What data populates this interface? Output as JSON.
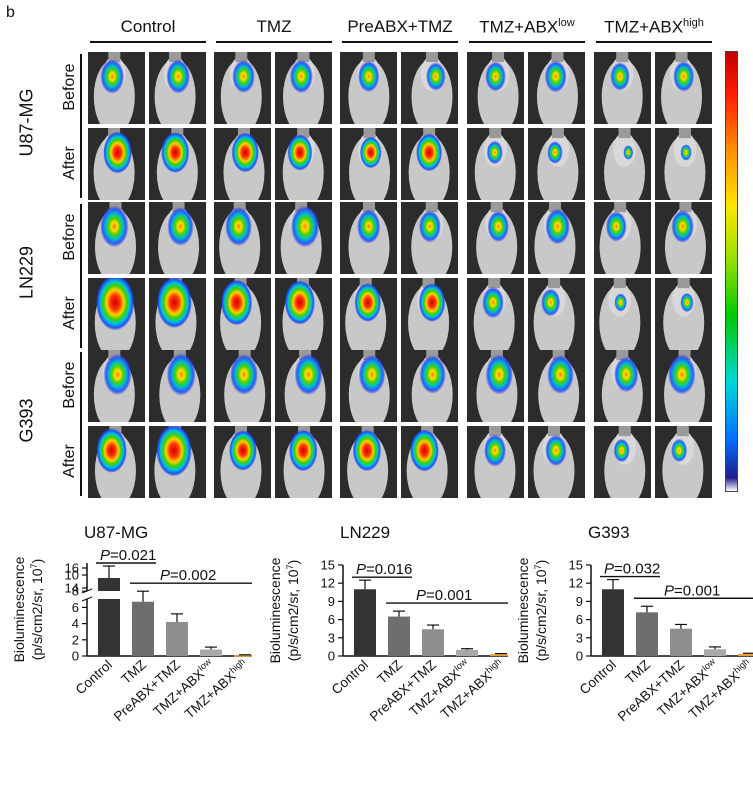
{
  "panel_letter": "b",
  "groups": [
    {
      "label": "Control",
      "sup": ""
    },
    {
      "label": "TMZ",
      "sup": ""
    },
    {
      "label": "PreABX+TMZ",
      "sup": ""
    },
    {
      "label": "TMZ+ABX",
      "sup": "low"
    },
    {
      "label": "TMZ+ABX",
      "sup": "high"
    }
  ],
  "cell_lines": [
    "U87-MG",
    "LN229",
    "G393"
  ],
  "timepoints": [
    "Before",
    "After"
  ],
  "colors": {
    "control": "#333333",
    "tmz": "#6e6e6e",
    "preabx": "#8e8e8e",
    "abx_low": "#a8a8a8",
    "abx_high": "#e8a030"
  },
  "chart_data": [
    {
      "type": "bar",
      "title": "U87-MG",
      "ylabel": [
        "Bioluminescence",
        "(p/s/cm2/sr, 10",
        "7",
        ")"
      ],
      "categories": [
        "Control",
        "TMZ",
        "PreABX+TMZ",
        "TMZ+ABX",
        "TMZ+ABX"
      ],
      "category_sup": [
        "",
        "",
        "",
        "low",
        "high"
      ],
      "values": [
        15.0,
        6.7,
        4.2,
        0.8,
        0.1
      ],
      "errors": [
        1.2,
        1.3,
        1.0,
        0.3,
        0.05
      ],
      "broken_axis": true,
      "ylim": [
        0,
        17
      ],
      "yticks": [
        0,
        2,
        4,
        6,
        8,
        10,
        14,
        16
      ],
      "ytick_labels": [
        "0",
        "2",
        "4",
        "6",
        "8",
        "10",
        "14",
        "16"
      ],
      "annotations": [
        {
          "p_label": "P",
          "text": "=0.021",
          "from": 0,
          "to": 1
        },
        {
          "p_label": "P",
          "text": "=0.002",
          "from": 1,
          "to": 4
        }
      ]
    },
    {
      "type": "bar",
      "title": "LN229",
      "ylabel": [
        "Bioluminescence",
        "(p/s/cm2/sr, 10",
        "7",
        ")"
      ],
      "categories": [
        "Control",
        "TMZ",
        "PreABX+TMZ",
        "TMZ+ABX",
        "TMZ+ABX"
      ],
      "category_sup": [
        "",
        "",
        "",
        "low",
        "high"
      ],
      "values": [
        11.0,
        6.5,
        4.4,
        1.0,
        0.3
      ],
      "errors": [
        1.5,
        0.9,
        0.7,
        0.2,
        0.1
      ],
      "broken_axis": false,
      "ylim": [
        0,
        15
      ],
      "yticks": [
        0,
        3,
        6,
        9,
        12,
        15
      ],
      "ytick_labels": [
        "0",
        "3",
        "6",
        "9",
        "12",
        "15"
      ],
      "annotations": [
        {
          "p_label": "P",
          "text": "=0.016",
          "from": 0,
          "to": 1
        },
        {
          "p_label": "P",
          "text": "=0.001",
          "from": 1,
          "to": 4
        }
      ]
    },
    {
      "type": "bar",
      "title": "G393",
      "ylabel": [
        "Bioluminescence",
        "(p/s/cm2/sr, 10",
        "7",
        ")"
      ],
      "categories": [
        "Control",
        "TMZ",
        "PreABX+TMZ",
        "TMZ+ABX",
        "TMZ+ABX"
      ],
      "category_sup": [
        "",
        "",
        "",
        "low",
        "high"
      ],
      "values": [
        11.0,
        7.2,
        4.5,
        1.1,
        0.35
      ],
      "errors": [
        1.6,
        1.0,
        0.7,
        0.4,
        0.1
      ],
      "broken_axis": false,
      "ylim": [
        0,
        15
      ],
      "yticks": [
        0,
        3,
        6,
        9,
        12,
        15
      ],
      "ytick_labels": [
        "0",
        "3",
        "6",
        "9",
        "12",
        "15"
      ],
      "annotations": [
        {
          "p_label": "P",
          "text": "=0.032",
          "from": 0,
          "to": 1
        },
        {
          "p_label": "P",
          "text": "=0.001",
          "from": 1,
          "to": 4
        }
      ]
    }
  ]
}
